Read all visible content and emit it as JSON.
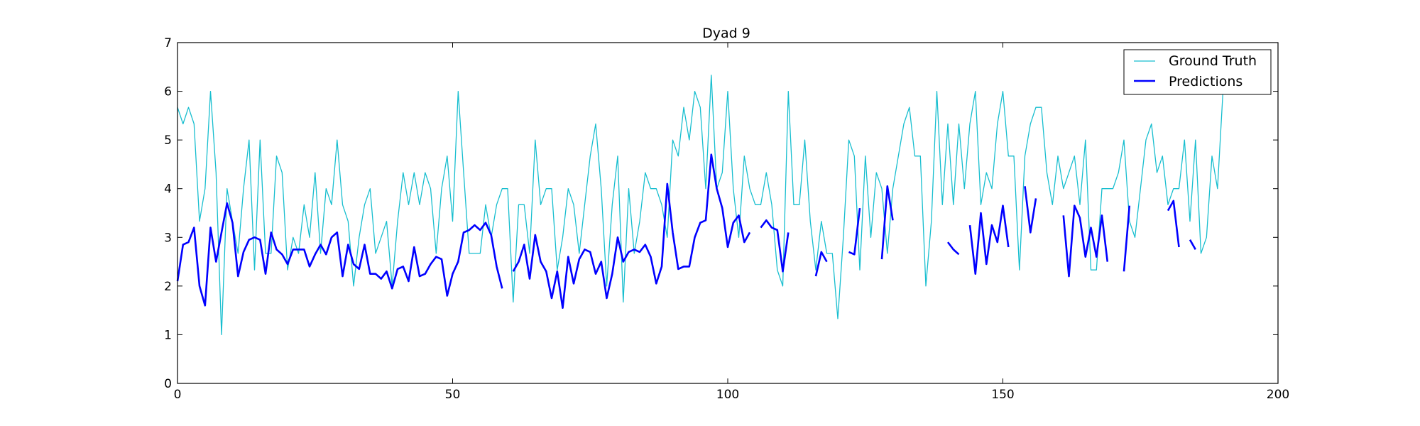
{
  "chart_data": {
    "type": "line",
    "title": "Dyad 9",
    "xlabel": "",
    "ylabel": "",
    "xlim": [
      0,
      200
    ],
    "ylim": [
      0,
      7
    ],
    "xticks": [
      0,
      50,
      100,
      150,
      200
    ],
    "yticks": [
      0,
      1,
      2,
      3,
      4,
      5,
      6,
      7
    ],
    "grid": false,
    "legend_position": "top-right",
    "series": [
      {
        "name": "Ground Truth",
        "color": "#17becf",
        "x": [
          0,
          1,
          2,
          3,
          4,
          5,
          6,
          7,
          8,
          9,
          10,
          11,
          12,
          13,
          14,
          15,
          16,
          17,
          18,
          19,
          20,
          21,
          22,
          23,
          24,
          25,
          26,
          27,
          28,
          29,
          30,
          31,
          32,
          33,
          34,
          35,
          36,
          37,
          38,
          39,
          40,
          41,
          42,
          43,
          44,
          45,
          46,
          47,
          48,
          49,
          50,
          51,
          52,
          53,
          54,
          55,
          56,
          57,
          58,
          59,
          60,
          61,
          62,
          63,
          64,
          65,
          66,
          67,
          68,
          69,
          70,
          71,
          72,
          73,
          74,
          75,
          76,
          77,
          78,
          79,
          80,
          81,
          82,
          83,
          84,
          85,
          86,
          87,
          88,
          89,
          90,
          91,
          92,
          93,
          94,
          95,
          96,
          97,
          98,
          99,
          100,
          101,
          102,
          103,
          104,
          105,
          106,
          107,
          108,
          109,
          110,
          111,
          112,
          113,
          114,
          115,
          116,
          117,
          118,
          119,
          120,
          121,
          122,
          123,
          124,
          125,
          126,
          127,
          128,
          129,
          130,
          131,
          132,
          133,
          134,
          135,
          136,
          137,
          138,
          139,
          140,
          141,
          142,
          143,
          144,
          145,
          146,
          147,
          148,
          149,
          150,
          151,
          152,
          153,
          154,
          155,
          156,
          157,
          158,
          159,
          160,
          161,
          162,
          163,
          164,
          165,
          166,
          167,
          168,
          169,
          170,
          171,
          172,
          173,
          174,
          175,
          176,
          177,
          178,
          179,
          180,
          181,
          182,
          183,
          184,
          185,
          186,
          187,
          188,
          189,
          190
        ],
        "values": [
          5.67,
          5.33,
          5.67,
          5.33,
          3.33,
          4.0,
          6.0,
          4.33,
          1.0,
          4.0,
          3.33,
          2.67,
          4.0,
          5.0,
          2.33,
          5.0,
          2.67,
          2.67,
          4.67,
          4.33,
          2.33,
          3.0,
          2.67,
          3.67,
          3.0,
          4.33,
          2.67,
          4.0,
          3.67,
          5.0,
          3.67,
          3.33,
          2.0,
          3.0,
          3.67,
          4.0,
          2.67,
          3.0,
          3.33,
          2.0,
          3.33,
          4.33,
          3.67,
          4.33,
          3.67,
          4.33,
          4.0,
          2.67,
          4.0,
          4.67,
          3.33,
          6.0,
          4.33,
          2.67,
          2.67,
          2.67,
          3.67,
          3.0,
          3.67,
          4.0,
          4.0,
          1.67,
          3.67,
          3.67,
          2.67,
          5.0,
          3.67,
          4.0,
          4.0,
          2.33,
          3.0,
          4.0,
          3.67,
          2.67,
          3.67,
          4.67,
          5.33,
          4.0,
          2.0,
          3.67,
          4.67,
          1.67,
          4.0,
          2.67,
          3.33,
          4.33,
          4.0,
          4.0,
          3.67,
          3.0,
          5.0,
          4.67,
          5.67,
          5.0,
          6.0,
          5.67,
          4.0,
          6.33,
          4.0,
          4.33,
          6.0,
          4.0,
          3.0,
          4.67,
          4.0,
          3.67,
          3.67,
          4.33,
          3.67,
          2.33,
          2.0,
          6.0,
          3.67,
          3.67,
          5.0,
          3.33,
          2.33,
          3.33,
          2.67,
          2.67,
          1.33,
          3.0,
          5.0,
          4.67,
          2.33,
          4.67,
          3.0,
          4.33,
          4.0,
          2.67,
          4.0,
          4.67,
          5.33,
          5.67,
          4.67,
          4.67,
          2.0,
          3.33,
          6.0,
          3.67,
          5.33,
          3.67,
          5.33,
          4.0,
          5.33,
          6.0,
          3.67,
          4.33,
          4.0,
          5.33,
          6.0,
          4.67,
          4.67,
          2.33,
          4.67,
          5.33,
          5.67,
          5.67,
          4.33,
          3.67,
          4.67,
          4.0,
          4.33,
          4.67,
          3.67,
          5.0,
          2.33,
          2.33,
          4.0,
          4.0,
          4.0,
          4.33,
          5.0,
          3.33,
          3.0,
          4.0,
          5.0,
          5.33,
          4.33,
          4.67,
          3.67,
          4.0,
          4.0,
          5.0,
          3.33,
          5.0,
          2.67,
          3.0,
          4.67,
          4.0,
          6.0
        ]
      },
      {
        "name": "Predictions",
        "color": "#0000ff",
        "segments": [
          {
            "x": [
              0,
              1,
              2,
              3,
              4,
              5,
              6,
              7,
              8,
              9,
              10,
              11,
              12,
              13,
              14,
              15,
              16,
              17,
              18,
              19,
              20,
              21,
              22,
              23,
              24,
              25,
              26,
              27,
              28,
              29,
              30,
              31,
              32,
              33,
              34,
              35,
              36,
              37,
              38,
              39,
              40,
              41,
              42,
              43,
              44,
              45,
              46,
              47,
              48,
              49,
              50,
              51,
              52,
              53,
              54,
              55,
              56,
              57,
              58,
              59
            ],
            "values": [
              2.1,
              2.85,
              2.9,
              3.2,
              2.0,
              1.6,
              3.2,
              2.5,
              3.1,
              3.7,
              3.3,
              2.2,
              2.7,
              2.95,
              3.0,
              2.95,
              2.25,
              3.1,
              2.75,
              2.65,
              2.45,
              2.75,
              2.75,
              2.75,
              2.4,
              2.65,
              2.85,
              2.65,
              3.0,
              3.1,
              2.2,
              2.85,
              2.45,
              2.35,
              2.85,
              2.25,
              2.25,
              2.15,
              2.3,
              1.95,
              2.35,
              2.4,
              2.1,
              2.8,
              2.2,
              2.25,
              2.45,
              2.6,
              2.55,
              1.8,
              2.25,
              2.5,
              3.1,
              3.15,
              3.25,
              3.15,
              3.3,
              3.05,
              2.4,
              1.95
            ]
          },
          {
            "x": [
              61,
              62,
              63,
              64,
              65,
              66,
              67,
              68,
              69,
              70,
              71,
              72,
              73,
              74,
              75,
              76,
              77,
              78,
              79,
              80,
              81,
              82,
              83,
              84,
              85,
              86,
              87,
              88,
              89,
              90,
              91,
              92,
              93,
              94,
              95,
              96,
              97,
              98,
              99,
              100,
              101,
              102,
              103,
              104
            ],
            "values": [
              2.3,
              2.5,
              2.85,
              2.15,
              3.05,
              2.5,
              2.3,
              1.75,
              2.3,
              1.55,
              2.6,
              2.05,
              2.55,
              2.75,
              2.7,
              2.25,
              2.5,
              1.75,
              2.25,
              3.0,
              2.5,
              2.7,
              2.75,
              2.7,
              2.85,
              2.6,
              2.05,
              2.4,
              4.1,
              3.1,
              2.35,
              2.4,
              2.4,
              3.0,
              3.3,
              3.35,
              4.7,
              4.0,
              3.6,
              2.8,
              3.3,
              3.45,
              2.9,
              3.1
            ]
          },
          {
            "x": [
              106,
              107,
              108,
              109,
              110,
              111
            ],
            "values": [
              3.2,
              3.35,
              3.2,
              3.15,
              2.3,
              3.1
            ]
          },
          {
            "x": [
              116,
              117,
              118
            ],
            "values": [
              2.2,
              2.7,
              2.5
            ]
          },
          {
            "x": [
              122,
              123,
              124
            ],
            "values": [
              2.7,
              2.65,
              3.6
            ]
          },
          {
            "x": [
              128,
              129,
              130
            ],
            "values": [
              2.55,
              4.05,
              3.35
            ]
          },
          {
            "x": [
              140,
              141,
              142
            ],
            "values": [
              2.9,
              2.75,
              2.65
            ]
          },
          {
            "x": [
              144,
              145,
              146,
              147,
              148,
              149,
              150,
              151
            ],
            "values": [
              3.25,
              2.25,
              3.5,
              2.45,
              3.25,
              2.9,
              3.65,
              2.8
            ]
          },
          {
            "x": [
              154,
              155,
              156
            ],
            "values": [
              4.05,
              3.1,
              3.8
            ]
          },
          {
            "x": [
              161,
              162,
              163,
              164,
              165,
              166,
              167,
              168,
              169
            ],
            "values": [
              3.45,
              2.2,
              3.65,
              3.4,
              2.6,
              3.2,
              2.6,
              3.45,
              2.5
            ]
          },
          {
            "x": [
              172,
              173
            ],
            "values": [
              2.3,
              3.65
            ]
          },
          {
            "x": [
              180,
              181,
              182
            ],
            "values": [
              3.55,
              3.75,
              2.8
            ]
          },
          {
            "x": [
              184,
              185
            ],
            "values": [
              2.95,
              2.75
            ]
          }
        ]
      }
    ]
  }
}
